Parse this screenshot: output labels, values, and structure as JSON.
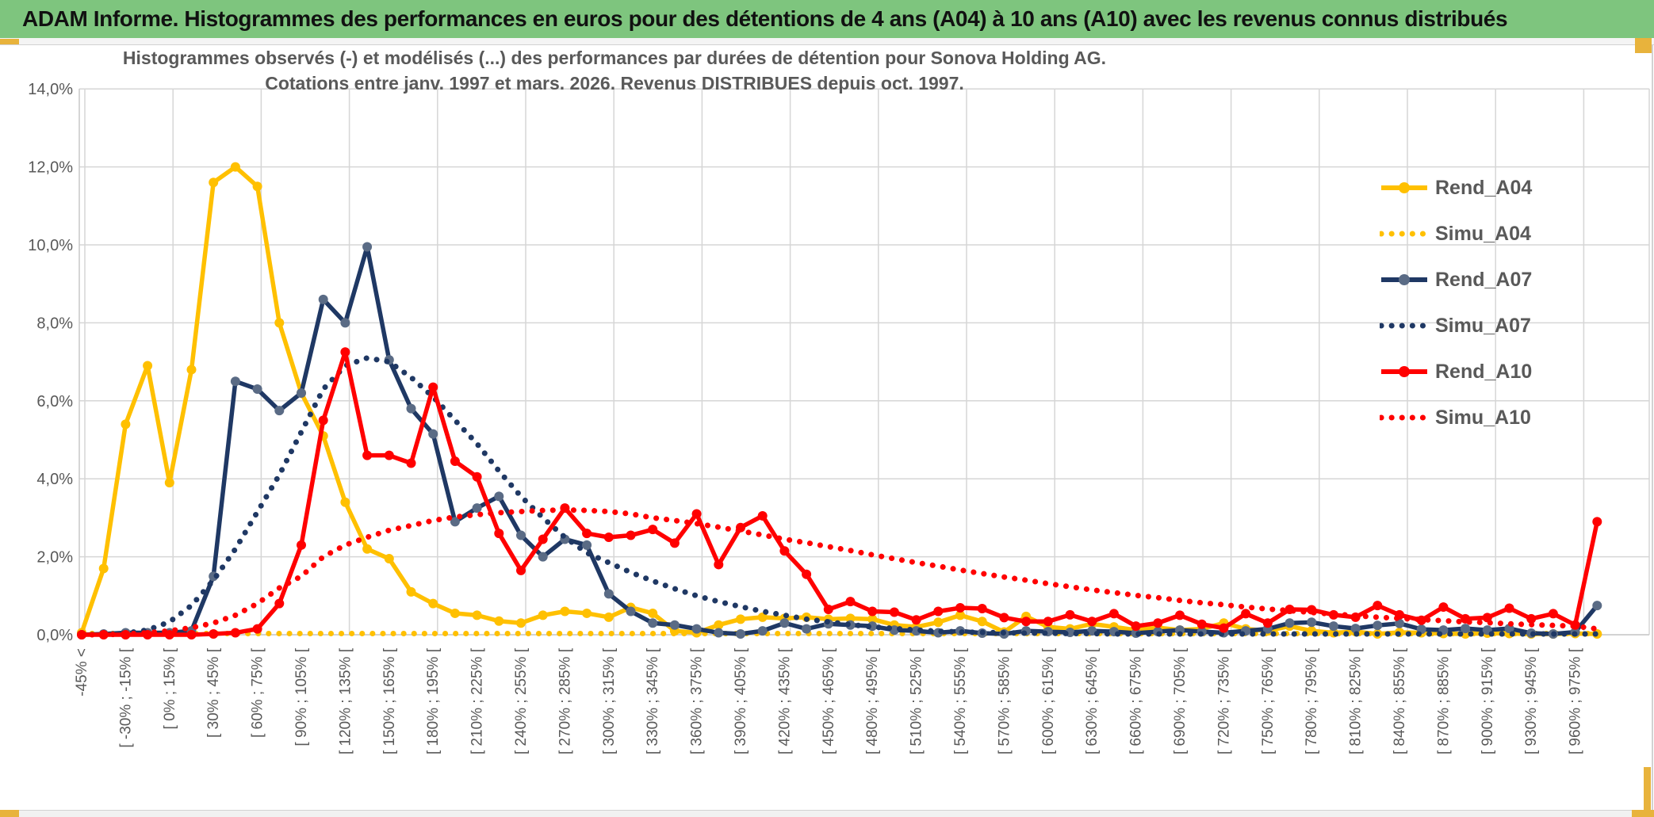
{
  "window": {
    "header_title": "ADAM Informe. Histogrammes des performances en euros pour des détentions de 4 ans (A04) à 10 ans (A10) avec les revenus connus distribués",
    "header_bg": "#7EC57E",
    "accent_gold": "#E8B33C"
  },
  "chart_data": {
    "type": "line",
    "title_line1": "Histogrammes observés (-) et modélisés (...) des performances par durées de détention pour Sonova Holding AG.",
    "title_line2": "Cotations entre janv. 1997 et mars. 2026. Revenus DISTRIBUES depuis oct. 1997.",
    "ylabel": "",
    "xlabel": "",
    "ylim": [
      0,
      14
    ],
    "grid": true,
    "legend_position": "right-inside",
    "ytick_labels": [
      "0,0%",
      "2,0%",
      "4,0%",
      "6,0%",
      "8,0%",
      "10,0%",
      "12,0%",
      "14,0%"
    ],
    "categories": [
      "-45% <",
      "[ -30% ; -15% [",
      "[ 0% ; 15% [",
      "[ 30% ; 45% [",
      "[ 60% ; 75% [",
      "[ 90% ; 105% [",
      "[ 120% ; 135% [",
      "[ 150% ; 165% [",
      "[ 180% ; 195% [",
      "[ 210% ; 225% [",
      "[ 240% ; 255% [",
      "[ 270% ; 285% [",
      "[ 300% ; 315% [",
      "[ 330% ; 345% [",
      "[ 360% ; 375% [",
      "[ 390% ; 405% [",
      "[ 420% ; 435% [",
      "[ 450% ; 465% [",
      "[ 480% ; 495% [",
      "[ 510% ; 525% [",
      "[ 540% ; 555% [",
      "[ 570% ; 585% [",
      "[ 600% ; 615% [",
      "[ 630% ; 645% [",
      "[ 660% ; 675% [",
      "[ 690% ; 705% [",
      "[ 720% ; 735% [",
      "[ 750% ; 765% [",
      "[ 780% ; 795% [",
      "[ 810% ; 825% [",
      "[ 840% ; 855% [",
      "[ 870% ; 885% [",
      "[ 900% ; 915% [",
      "[ 930% ; 945% [",
      "[ 960% ; 975% ["
    ],
    "labels_every_n_points": 2,
    "n_points": 70,
    "series": [
      {
        "name": "Rend_A04",
        "style": "solid",
        "color": "#FFC000",
        "marker_color": "#FFC000",
        "values": [
          0.05,
          1.7,
          5.4,
          6.9,
          3.9,
          6.8,
          11.6,
          12.0,
          11.5,
          8.0,
          6.2,
          5.1,
          3.4,
          2.2,
          1.95,
          1.1,
          0.8,
          0.55,
          0.5,
          0.35,
          0.3,
          0.5,
          0.6,
          0.55,
          0.45,
          0.7,
          0.55,
          0.1,
          0.05,
          0.25,
          0.4,
          0.45,
          0.42,
          0.45,
          0.4,
          0.42,
          0.4,
          0.25,
          0.2,
          0.32,
          0.5,
          0.34,
          0.07,
          0.47,
          0.2,
          0.15,
          0.28,
          0.2,
          0.12,
          0.18,
          0.12,
          0.15,
          0.3,
          0.15,
          0.1,
          0.22,
          0.1,
          0.05,
          0.08,
          0.02,
          0.06,
          0.05,
          0.03,
          0.02,
          0.04,
          0.03,
          0.02,
          0.02,
          0.03,
          0.02
        ]
      },
      {
        "name": "Simu_A04",
        "style": "dotted",
        "color": "#FFC000",
        "values": [
          0.03,
          0.03,
          0.03,
          0.03,
          0.03,
          0.03,
          0.03,
          0.03,
          0.03,
          0.03,
          0.03,
          0.03,
          0.03,
          0.03,
          0.03,
          0.03,
          0.03,
          0.03,
          0.03,
          0.03,
          0.03,
          0.03,
          0.03,
          0.03,
          0.03,
          0.03,
          0.03,
          0.03,
          0.03,
          0.03,
          0.03,
          0.03,
          0.03,
          0.03,
          0.03,
          0.03,
          0.03,
          0.03,
          0.03,
          0.03,
          0.03,
          0.03,
          0.03,
          0.03,
          0.03,
          0.03,
          0.03,
          0.03,
          0.03,
          0.03,
          0.03,
          0.03,
          0.03,
          0.03,
          0.03,
          0.03,
          0.03,
          0.03,
          0.03,
          0.03,
          0.03,
          0.03,
          0.03,
          0.03,
          0.03,
          0.03,
          0.03,
          0.03,
          0.03,
          0.03
        ]
      },
      {
        "name": "Rend_A07",
        "style": "solid",
        "color": "#1F3864",
        "marker_color": "#5A6B85",
        "values": [
          0,
          0.02,
          0.05,
          0.05,
          0.05,
          0.1,
          1.5,
          6.5,
          6.3,
          5.75,
          6.2,
          8.6,
          8.0,
          9.95,
          7.05,
          5.8,
          5.15,
          2.9,
          3.25,
          3.55,
          2.55,
          2.0,
          2.45,
          2.3,
          1.05,
          0.6,
          0.3,
          0.25,
          0.15,
          0.05,
          0.02,
          0.1,
          0.3,
          0.15,
          0.28,
          0.25,
          0.22,
          0.12,
          0.1,
          0.05,
          0.1,
          0.04,
          0.02,
          0.1,
          0.08,
          0.06,
          0.1,
          0.08,
          0.04,
          0.08,
          0.12,
          0.08,
          0.05,
          0.1,
          0.15,
          0.3,
          0.32,
          0.22,
          0.16,
          0.24,
          0.29,
          0.14,
          0.12,
          0.16,
          0.12,
          0.16,
          0.04,
          0.02,
          0.07,
          0.75
        ]
      },
      {
        "name": "Simu_A07",
        "style": "dotted",
        "color": "#1F3864",
        "values": [
          0,
          0.01,
          0.04,
          0.12,
          0.33,
          0.75,
          1.4,
          2.2,
          3.15,
          4.1,
          5.2,
          6.3,
          6.9,
          7.1,
          7.0,
          6.6,
          6.1,
          5.5,
          4.9,
          4.2,
          3.55,
          3.0,
          2.5,
          2.1,
          1.85,
          1.6,
          1.38,
          1.18,
          1.0,
          0.85,
          0.72,
          0.6,
          0.5,
          0.4,
          0.33,
          0.26,
          0.2,
          0.16,
          0.12,
          0.09,
          0.07,
          0.06,
          0.05,
          0.04,
          0.04,
          0.03,
          0.03,
          0.02,
          0.02,
          0.02,
          0.02,
          0.02,
          0.02,
          0.02,
          0.02,
          0.02,
          0.02,
          0.02,
          0.02,
          0.02,
          0.02,
          0.02,
          0.02,
          0.02,
          0.02,
          0.02,
          0.02,
          0.02,
          0.02,
          0.02
        ]
      },
      {
        "name": "Rend_A10",
        "style": "solid",
        "color": "#FF0000",
        "marker_color": "#FF0000",
        "values": [
          0,
          0,
          0,
          0,
          0,
          0,
          0.02,
          0.05,
          0.15,
          0.8,
          2.3,
          5.5,
          7.25,
          4.6,
          4.6,
          4.4,
          6.35,
          4.45,
          4.05,
          2.6,
          1.65,
          2.45,
          3.25,
          2.6,
          2.5,
          2.55,
          2.7,
          2.35,
          3.1,
          1.8,
          2.75,
          3.05,
          2.15,
          1.55,
          0.65,
          0.85,
          0.6,
          0.58,
          0.38,
          0.6,
          0.69,
          0.67,
          0.44,
          0.34,
          0.34,
          0.51,
          0.34,
          0.54,
          0.22,
          0.3,
          0.5,
          0.27,
          0.17,
          0.54,
          0.3,
          0.65,
          0.64,
          0.51,
          0.45,
          0.75,
          0.51,
          0.37,
          0.71,
          0.41,
          0.44,
          0.68,
          0.41,
          0.54,
          0.25,
          2.9
        ]
      },
      {
        "name": "Simu_A10",
        "style": "dotted",
        "color": "#FF0000",
        "values": [
          0,
          0,
          0.02,
          0.05,
          0.1,
          0.18,
          0.3,
          0.5,
          0.8,
          1.2,
          1.5,
          2.0,
          2.3,
          2.5,
          2.68,
          2.8,
          2.93,
          3.02,
          3.08,
          3.13,
          3.16,
          3.19,
          3.2,
          3.19,
          3.16,
          3.1,
          3.0,
          2.93,
          2.85,
          2.76,
          2.66,
          2.56,
          2.45,
          2.36,
          2.26,
          2.16,
          2.05,
          1.95,
          1.85,
          1.76,
          1.66,
          1.57,
          1.48,
          1.4,
          1.31,
          1.23,
          1.15,
          1.08,
          1.01,
          0.95,
          0.88,
          0.82,
          0.77,
          0.71,
          0.66,
          0.62,
          0.57,
          0.53,
          0.49,
          0.45,
          0.42,
          0.39,
          0.36,
          0.33,
          0.31,
          0.28,
          0.26,
          0.24,
          0.22,
          0.15
        ]
      }
    ]
  }
}
